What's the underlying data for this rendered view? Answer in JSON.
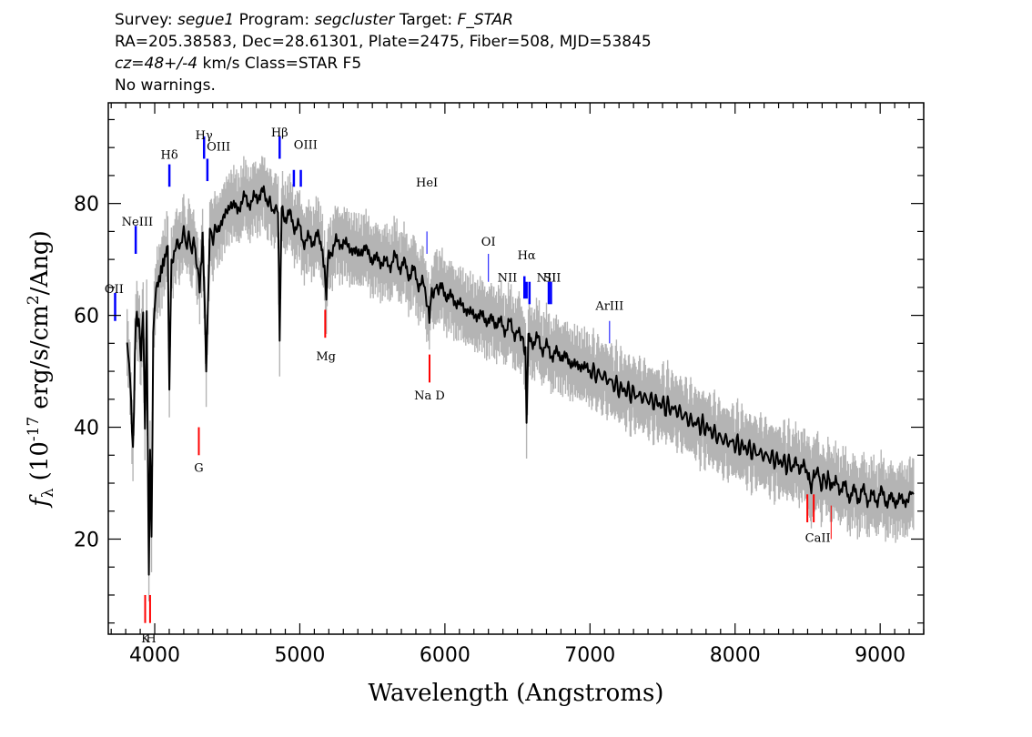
{
  "header": {
    "line1": {
      "survey_label": "Survey:",
      "survey": "segue1",
      "program_label": "Program:",
      "program": "segcluster",
      "target_label": "Target:",
      "target": "F_STAR"
    },
    "line2": "RA=205.38583, Dec=28.61301, Plate=2475, Fiber=508, MJD=53845",
    "line3": {
      "cz_label": "cz=48+/-4",
      "rest": "km/s Class=STAR F5"
    },
    "line4": "No warnings."
  },
  "colors": {
    "emission_line": "#0000ff",
    "absorption_line": "#ff0000",
    "flux": "#000000",
    "error_band": "#b4b4b4"
  },
  "chart_data": {
    "type": "line",
    "xlabel": "Wavelength (Angstroms)",
    "ylabel": "fλ (10⁻¹⁷ erg/s/cm²/Ang)",
    "ylabel_parts": {
      "f": "f",
      "sub": "λ",
      "pre": "(10",
      "exp": "-17",
      "mid": "erg/s/cm",
      "exp2": "2",
      "post": "/Ang)"
    },
    "xlim": [
      3680,
      9300
    ],
    "ylim": [
      3,
      98
    ],
    "xticks": [
      4000,
      5000,
      6000,
      7000,
      8000,
      9000
    ],
    "xtick_labels": [
      "4000",
      "5000",
      "6000",
      "7000",
      "8000",
      "9000"
    ],
    "yticks": [
      20,
      40,
      60,
      80
    ],
    "ytick_labels": [
      "20",
      "40",
      "60",
      "80"
    ],
    "grid": false,
    "series": [
      {
        "x": [
          3810,
          3830,
          3850,
          3870,
          3890,
          3905,
          3920,
          3933,
          3945,
          3960,
          3968,
          3978,
          3990,
          4010,
          4030,
          4050,
          4070,
          4090,
          4101,
          4115,
          4140,
          4170,
          4200,
          4240,
          4280,
          4310,
          4330,
          4340,
          4355,
          4380,
          4420,
          4470,
          4520,
          4570,
          4620,
          4670,
          4720,
          4770,
          4800,
          4830,
          4850,
          4861,
          4875,
          4900,
          4950,
          5000,
          5050,
          5100,
          5150,
          5170,
          5183,
          5200,
          5250,
          5300,
          5350,
          5400,
          5450,
          5500,
          5550,
          5600,
          5650,
          5700,
          5750,
          5800,
          5850,
          5880,
          5893,
          5910,
          5950,
          6000,
          6050,
          6100,
          6150,
          6200,
          6250,
          6300,
          6350,
          6400,
          6450,
          6500,
          6540,
          6555,
          6563,
          6575,
          6600,
          6650,
          6700,
          6750,
          6800,
          6850,
          6900,
          6950,
          7000,
          7100,
          7200,
          7300,
          7400,
          7500,
          7600,
          7700,
          7800,
          7900,
          8000,
          8100,
          8200,
          8300,
          8400,
          8498,
          8520,
          8542,
          8570,
          8600,
          8640,
          8662,
          8700,
          8750,
          8800,
          8850,
          8900,
          8950,
          9000,
          9050,
          9100,
          9150,
          9200,
          9230
        ],
        "y": [
          56,
          50,
          36,
          60,
          58,
          52,
          62,
          40,
          60,
          14,
          38,
          20,
          58,
          66,
          67,
          69,
          70,
          72,
          47,
          70,
          72,
          73,
          74,
          73,
          72,
          64,
          73,
          66,
          52,
          74,
          75,
          77,
          80,
          79,
          81,
          80,
          82,
          81,
          79,
          80,
          78,
          56,
          79,
          78,
          77,
          75,
          73,
          74,
          73,
          69,
          64,
          71,
          73,
          73,
          72,
          71,
          72,
          70,
          70,
          69,
          70,
          69,
          68,
          67,
          65,
          63,
          59,
          64,
          65,
          64,
          63,
          62,
          61,
          60,
          60,
          59,
          59,
          58,
          58,
          57,
          56,
          54,
          41,
          55,
          56,
          55,
          54,
          53,
          53,
          52,
          51,
          51,
          50,
          49,
          47,
          46,
          45,
          44,
          43,
          41,
          40,
          38,
          37,
          36,
          35,
          34,
          33,
          32,
          30,
          31,
          32,
          30,
          31,
          29,
          30,
          29,
          28,
          28,
          28,
          27,
          28,
          27,
          27,
          27,
          27,
          28
        ]
      }
    ],
    "lines": [
      {
        "label": "NeIII",
        "wave": 3869,
        "type": "emission"
      },
      {
        "label": "OII",
        "wave": 3727,
        "type": "emission"
      },
      {
        "label": "Hδ",
        "wave": 4101,
        "type": "emission"
      },
      {
        "label": "Hγ",
        "wave": 4340,
        "type": "emission"
      },
      {
        "label": "OIII",
        "wave": 4363,
        "type": "emission"
      },
      {
        "label": "Hβ",
        "wave": 4861,
        "type": "emission"
      },
      {
        "label": "OIII",
        "wave": 4959,
        "type": "emission"
      },
      {
        "label": "OIII",
        "wave": 5007,
        "type": "emission"
      },
      {
        "label": "HeI",
        "wave": 5876,
        "type": "emission"
      },
      {
        "label": "OI",
        "wave": 6300,
        "type": "emission"
      },
      {
        "label": "NII",
        "wave": 6548,
        "type": "emission"
      },
      {
        "label": "Hα",
        "wave": 6563,
        "type": "emission"
      },
      {
        "label": "NII",
        "wave": 6583,
        "type": "emission"
      },
      {
        "label": "SII",
        "wave": 6716,
        "type": "emission"
      },
      {
        "label": "SII",
        "wave": 6731,
        "type": "emission"
      },
      {
        "label": "ArIII",
        "wave": 7135,
        "type": "emission"
      },
      {
        "label": "K",
        "wave": 3934,
        "type": "absorption"
      },
      {
        "label": "H",
        "wave": 3968,
        "type": "absorption"
      },
      {
        "label": "G",
        "wave": 4304,
        "type": "absorption"
      },
      {
        "label": "Mg",
        "wave": 5175,
        "type": "absorption"
      },
      {
        "label": "Na D",
        "wave": 5894,
        "type": "absorption"
      },
      {
        "label": "CaII",
        "wave": 8498,
        "type": "absorption"
      },
      {
        "label": "CaII",
        "wave": 8542,
        "type": "absorption"
      },
      {
        "label": "CaII",
        "wave": 8662,
        "type": "absorption"
      }
    ]
  }
}
